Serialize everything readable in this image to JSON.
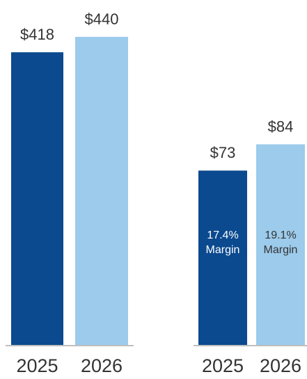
{
  "chart_data": [
    {
      "type": "bar",
      "categories": [
        "2025",
        "2026"
      ],
      "values": [
        418,
        440
      ],
      "value_labels": [
        "$418",
        "$440"
      ],
      "colors": [
        "#0b4a8f",
        "#9ccbeb"
      ],
      "ylim": [
        0,
        440
      ]
    },
    {
      "type": "bar",
      "categories": [
        "2025",
        "2026"
      ],
      "values": [
        73,
        84
      ],
      "value_labels": [
        "$73",
        "$84"
      ],
      "colors": [
        "#0b4a8f",
        "#9ccbeb"
      ],
      "ylim": [
        0,
        129
      ],
      "inner_labels": [
        [
          "17.4%",
          "Margin"
        ],
        [
          "19.1%",
          "Margin"
        ]
      ]
    }
  ]
}
